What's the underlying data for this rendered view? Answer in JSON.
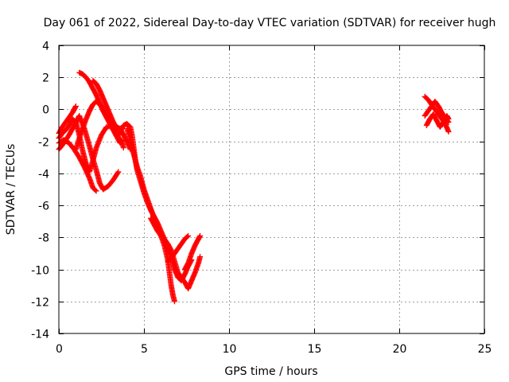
{
  "chart_data": {
    "type": "scatter",
    "title": "Day 061 of 2022, Sidereal Day-to-day VTEC variation (SDTVAR) for receiver hugh",
    "xlabel": "GPS time / hours",
    "ylabel": "SDTVAR / TECUs",
    "xlim": [
      0,
      25
    ],
    "ylim": [
      -14,
      4
    ],
    "xticks": [
      0,
      5,
      10,
      15,
      20,
      25
    ],
    "yticks": [
      -14,
      -12,
      -10,
      -8,
      -6,
      -4,
      -2,
      0,
      2,
      4
    ],
    "grid": true,
    "marker": "+",
    "color": "#ff0000",
    "series": [
      {
        "name": "SDTVAR",
        "tracks": [
          [
            [
              0.0,
              -1.5
            ],
            [
              0.2,
              -1.1
            ],
            [
              0.4,
              -0.8
            ],
            [
              0.6,
              -0.5
            ],
            [
              0.8,
              -0.2
            ],
            [
              0.9,
              0.0
            ],
            [
              1.0,
              0.2
            ]
          ],
          [
            [
              0.0,
              -2.5
            ],
            [
              0.3,
              -2.1
            ],
            [
              0.6,
              -1.6
            ],
            [
              0.9,
              -1.0
            ],
            [
              1.2,
              -0.4
            ],
            [
              1.5,
              -1.2
            ],
            [
              1.8,
              -2.3
            ],
            [
              2.0,
              -3.1
            ],
            [
              2.2,
              -3.8
            ],
            [
              2.4,
              -4.6
            ],
            [
              2.6,
              -5.0
            ],
            [
              2.9,
              -4.8
            ],
            [
              3.2,
              -4.4
            ],
            [
              3.5,
              -3.9
            ]
          ],
          [
            [
              0.0,
              -2.1
            ],
            [
              0.3,
              -1.9
            ],
            [
              0.6,
              -2.1
            ],
            [
              0.9,
              -2.5
            ],
            [
              1.2,
              -3.0
            ],
            [
              1.5,
              -3.6
            ],
            [
              1.8,
              -4.3
            ],
            [
              2.0,
              -4.9
            ],
            [
              2.2,
              -5.1
            ]
          ],
          [
            [
              0.0,
              -1.8
            ],
            [
              0.2,
              -1.5
            ],
            [
              0.4,
              -1.3
            ],
            [
              0.6,
              -1.0
            ],
            [
              0.8,
              -0.6
            ],
            [
              1.0,
              -0.8
            ],
            [
              1.2,
              -1.6
            ],
            [
              1.4,
              -2.6
            ],
            [
              1.6,
              -3.4
            ],
            [
              1.8,
              -3.9
            ],
            [
              2.0,
              -3.2
            ],
            [
              2.2,
              -2.4
            ],
            [
              2.5,
              -1.6
            ],
            [
              2.8,
              -1.1
            ],
            [
              3.2,
              -1.0
            ],
            [
              3.6,
              -1.2
            ],
            [
              3.8,
              -1.6
            ],
            [
              4.0,
              -2.0
            ],
            [
              4.2,
              -2.5
            ]
          ],
          [
            [
              1.0,
              -2.5
            ],
            [
              1.2,
              -1.8
            ],
            [
              1.4,
              -1.2
            ],
            [
              1.6,
              -0.6
            ],
            [
              1.8,
              -0.1
            ],
            [
              2.0,
              0.3
            ],
            [
              2.2,
              0.5
            ],
            [
              2.5,
              0.2
            ],
            [
              2.8,
              -0.4
            ],
            [
              3.1,
              -1.0
            ],
            [
              3.4,
              -1.6
            ],
            [
              3.7,
              -2.0
            ],
            [
              3.8,
              -2.4
            ]
          ],
          [
            [
              1.2,
              2.3
            ],
            [
              1.4,
              2.2
            ],
            [
              1.6,
              2.0
            ],
            [
              1.8,
              1.7
            ],
            [
              2.0,
              1.3
            ],
            [
              2.2,
              0.9
            ],
            [
              2.4,
              0.4
            ],
            [
              2.6,
              -0.1
            ],
            [
              2.8,
              -0.5
            ],
            [
              3.0,
              -0.9
            ],
            [
              3.2,
              -1.3
            ],
            [
              3.4,
              -1.7
            ],
            [
              3.6,
              -2.1
            ]
          ],
          [
            [
              2.0,
              1.8
            ],
            [
              2.2,
              1.6
            ],
            [
              2.4,
              1.2
            ],
            [
              2.6,
              0.7
            ],
            [
              2.8,
              0.2
            ],
            [
              3.0,
              -0.3
            ],
            [
              3.2,
              -0.8
            ],
            [
              3.4,
              -1.2
            ],
            [
              3.6,
              -1.6
            ]
          ],
          [
            [
              3.6,
              -1.4
            ],
            [
              3.8,
              -1.0
            ],
            [
              4.0,
              -0.9
            ],
            [
              4.2,
              -1.1
            ],
            [
              4.3,
              -1.6
            ],
            [
              4.4,
              -2.4
            ],
            [
              4.5,
              -3.2
            ],
            [
              4.6,
              -3.8
            ],
            [
              4.8,
              -4.5
            ],
            [
              5.0,
              -5.2
            ],
            [
              5.2,
              -5.8
            ],
            [
              5.4,
              -6.3
            ],
            [
              5.6,
              -6.7
            ],
            [
              5.8,
              -7.1
            ],
            [
              6.0,
              -7.6
            ],
            [
              6.2,
              -8.1
            ],
            [
              6.4,
              -8.6
            ],
            [
              6.6,
              -9.2
            ],
            [
              6.8,
              -10.0
            ],
            [
              7.0,
              -10.5
            ],
            [
              7.2,
              -10.7
            ],
            [
              7.4,
              -10.3
            ],
            [
              7.6,
              -9.8
            ],
            [
              7.8,
              -9.4
            ]
          ],
          [
            [
              4.0,
              -1.2
            ],
            [
              4.2,
              -1.9
            ],
            [
              4.4,
              -2.8
            ],
            [
              4.6,
              -3.6
            ],
            [
              4.8,
              -4.2
            ],
            [
              5.0,
              -5.0
            ],
            [
              5.2,
              -5.6
            ],
            [
              5.4,
              -6.2
            ],
            [
              5.6,
              -6.8
            ],
            [
              5.8,
              -7.4
            ],
            [
              6.0,
              -7.9
            ],
            [
              6.2,
              -8.5
            ],
            [
              6.4,
              -9.4
            ],
            [
              6.5,
              -10.2
            ],
            [
              6.6,
              -11.0
            ],
            [
              6.7,
              -11.6
            ],
            [
              6.8,
              -12.0
            ]
          ],
          [
            [
              5.4,
              -6.8
            ],
            [
              5.6,
              -7.2
            ],
            [
              5.8,
              -7.6
            ],
            [
              6.0,
              -7.9
            ],
            [
              6.2,
              -8.1
            ],
            [
              6.4,
              -8.4
            ],
            [
              6.6,
              -8.8
            ],
            [
              6.8,
              -9.5
            ],
            [
              7.0,
              -10.2
            ],
            [
              7.2,
              -10.5
            ],
            [
              7.4,
              -10.8
            ],
            [
              7.6,
              -11.2
            ],
            [
              7.8,
              -10.7
            ],
            [
              8.0,
              -10.2
            ],
            [
              8.2,
              -9.6
            ],
            [
              8.3,
              -9.2
            ]
          ],
          [
            [
              6.4,
              -9.5
            ],
            [
              6.6,
              -9.3
            ],
            [
              6.8,
              -9.0
            ],
            [
              7.0,
              -8.7
            ],
            [
              7.2,
              -8.4
            ],
            [
              7.4,
              -8.1
            ],
            [
              7.6,
              -7.9
            ]
          ],
          [
            [
              7.4,
              -10.0
            ],
            [
              7.6,
              -9.6
            ],
            [
              7.8,
              -9.0
            ],
            [
              8.0,
              -8.5
            ],
            [
              8.2,
              -8.1
            ],
            [
              8.3,
              -7.9
            ]
          ],
          [
            [
              21.5,
              0.8
            ],
            [
              21.7,
              0.6
            ],
            [
              21.9,
              0.3
            ],
            [
              22.1,
              0.0
            ],
            [
              22.3,
              -0.3
            ],
            [
              22.5,
              -0.6
            ],
            [
              22.7,
              -0.9
            ],
            [
              22.9,
              -1.4
            ]
          ],
          [
            [
              21.5,
              -0.4
            ],
            [
              21.7,
              -0.1
            ],
            [
              21.9,
              0.2
            ],
            [
              22.1,
              0.5
            ],
            [
              22.3,
              0.2
            ],
            [
              22.5,
              -0.2
            ],
            [
              22.7,
              -0.5
            ],
            [
              22.9,
              -0.8
            ]
          ],
          [
            [
              21.6,
              -1.0
            ],
            [
              21.8,
              -0.6
            ],
            [
              22.0,
              -0.3
            ],
            [
              22.2,
              -0.7
            ],
            [
              22.4,
              -1.1
            ],
            [
              22.6,
              -0.8
            ],
            [
              22.8,
              -0.4
            ],
            [
              22.9,
              -0.6
            ]
          ]
        ]
      }
    ]
  }
}
